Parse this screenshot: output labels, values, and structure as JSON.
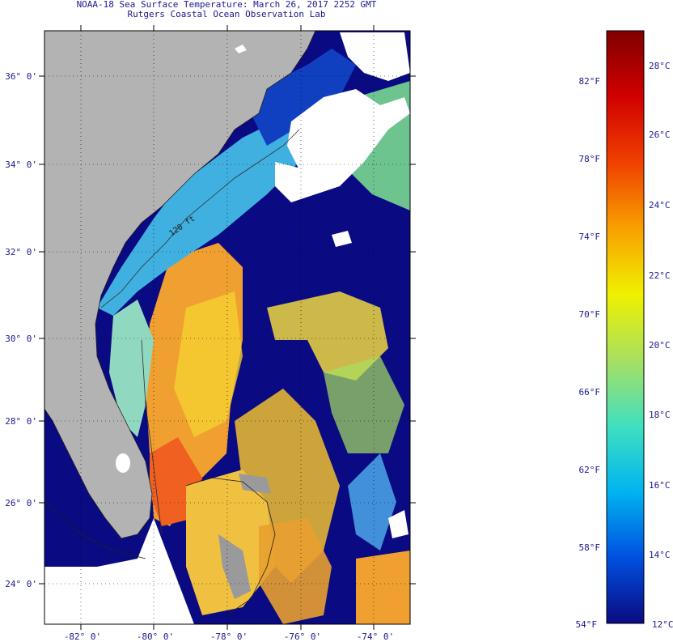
{
  "header": {
    "title": "NOAA-18 Sea Surface Temperature:  March 26, 2017 2252 GMT",
    "subtitle": "Rutgers Coastal Ocean Observation Lab"
  },
  "map": {
    "lat_labels": [
      "36° 0'",
      "34° 0'",
      "32° 0'",
      "30° 0'",
      "28° 0'",
      "26° 0'",
      "24° 0'"
    ],
    "lon_labels": [
      "-82° 0'",
      "-80° 0'",
      "-78° 0'",
      "-76° 0'",
      "-74° 0'"
    ],
    "contour_label": "120 ft",
    "colors": {
      "land": "#b3b3b3",
      "cold": "#0a0a82",
      "warm": "#f07020",
      "cloud": "#ffffff"
    }
  },
  "colorbar": {
    "fahrenheit_labels": [
      "82°F",
      "78°F",
      "74°F",
      "70°F",
      "66°F",
      "62°F",
      "58°F",
      "54°F"
    ],
    "celsius_labels": [
      "28°C",
      "26°C",
      "24°C",
      "22°C",
      "20°C",
      "18°C",
      "16°C",
      "14°C",
      "12°C"
    ],
    "gradient": [
      "#0a0a82",
      "#0050e0",
      "#00b4f0",
      "#40e0c0",
      "#a8e060",
      "#f0f000",
      "#f8a000",
      "#f04000",
      "#d00000",
      "#800000"
    ]
  }
}
